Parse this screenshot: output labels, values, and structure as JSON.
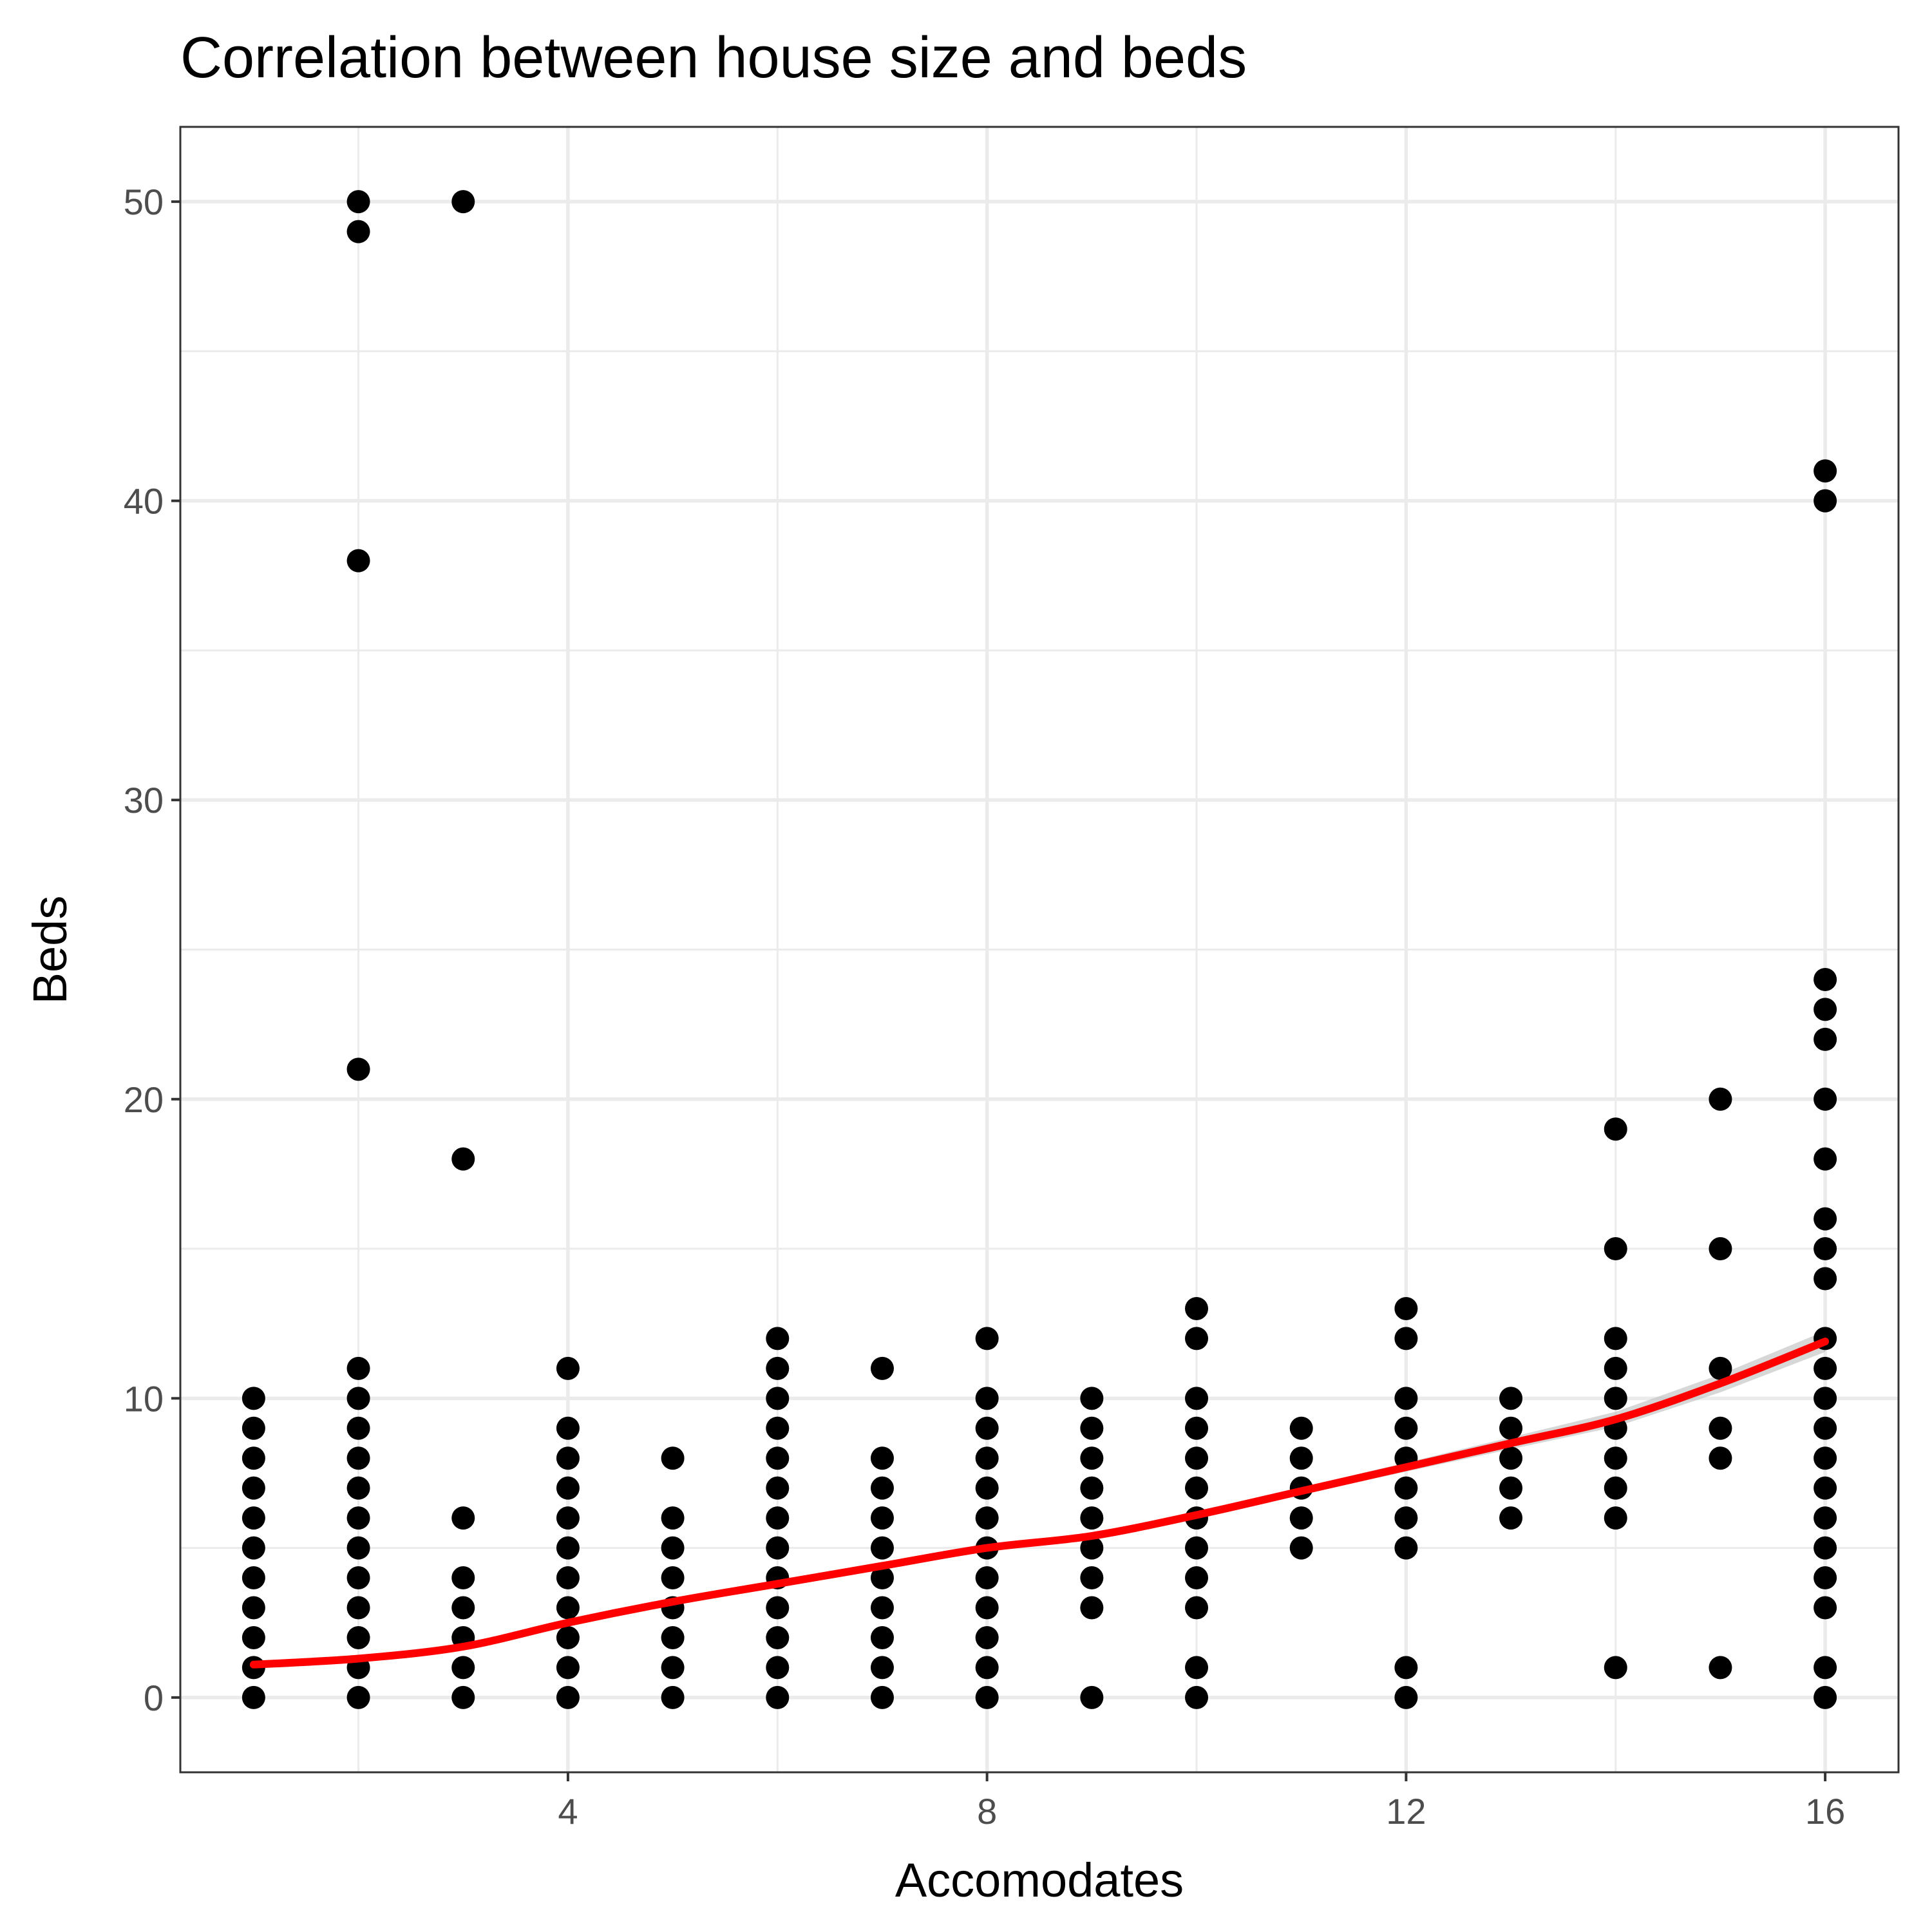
{
  "chart_data": {
    "type": "scatter",
    "title": "Correlation between house size and beds",
    "xlabel": "Accomodates",
    "ylabel": "Beds",
    "xlim": [
      0.3,
      16.7
    ],
    "ylim": [
      -2.5,
      52.5
    ],
    "x_ticks": [
      4,
      8,
      12,
      16
    ],
    "y_ticks": [
      0,
      10,
      20,
      30,
      40,
      50
    ],
    "grid": true,
    "legend": "none",
    "colors": {
      "points": "#000000",
      "smooth": "#ff0000",
      "band": "#bdbdbd"
    },
    "series": [
      {
        "points": [
          [
            1,
            0
          ],
          [
            1,
            1
          ],
          [
            1,
            2
          ],
          [
            1,
            3
          ],
          [
            1,
            4
          ],
          [
            1,
            5
          ],
          [
            1,
            6
          ],
          [
            1,
            7
          ],
          [
            1,
            8
          ],
          [
            1,
            9
          ],
          [
            1,
            10
          ],
          [
            2,
            0
          ],
          [
            2,
            1
          ],
          [
            2,
            2
          ],
          [
            2,
            3
          ],
          [
            2,
            4
          ],
          [
            2,
            5
          ],
          [
            2,
            6
          ],
          [
            2,
            7
          ],
          [
            2,
            8
          ],
          [
            2,
            9
          ],
          [
            2,
            10
          ],
          [
            2,
            11
          ],
          [
            2,
            21
          ],
          [
            2,
            38
          ],
          [
            2,
            49
          ],
          [
            2,
            50
          ],
          [
            3,
            0
          ],
          [
            3,
            1
          ],
          [
            3,
            2
          ],
          [
            3,
            3
          ],
          [
            3,
            4
          ],
          [
            3,
            6
          ],
          [
            3,
            18
          ],
          [
            3,
            50
          ],
          [
            4,
            0
          ],
          [
            4,
            1
          ],
          [
            4,
            2
          ],
          [
            4,
            3
          ],
          [
            4,
            4
          ],
          [
            4,
            5
          ],
          [
            4,
            6
          ],
          [
            4,
            7
          ],
          [
            4,
            8
          ],
          [
            4,
            9
          ],
          [
            4,
            11
          ],
          [
            5,
            0
          ],
          [
            5,
            1
          ],
          [
            5,
            2
          ],
          [
            5,
            3
          ],
          [
            5,
            4
          ],
          [
            5,
            5
          ],
          [
            5,
            6
          ],
          [
            5,
            8
          ],
          [
            6,
            0
          ],
          [
            6,
            1
          ],
          [
            6,
            2
          ],
          [
            6,
            3
          ],
          [
            6,
            4
          ],
          [
            6,
            5
          ],
          [
            6,
            6
          ],
          [
            6,
            7
          ],
          [
            6,
            8
          ],
          [
            6,
            9
          ],
          [
            6,
            10
          ],
          [
            6,
            11
          ],
          [
            6,
            12
          ],
          [
            7,
            0
          ],
          [
            7,
            1
          ],
          [
            7,
            2
          ],
          [
            7,
            3
          ],
          [
            7,
            4
          ],
          [
            7,
            5
          ],
          [
            7,
            6
          ],
          [
            7,
            7
          ],
          [
            7,
            8
          ],
          [
            7,
            11
          ],
          [
            8,
            0
          ],
          [
            8,
            1
          ],
          [
            8,
            2
          ],
          [
            8,
            3
          ],
          [
            8,
            4
          ],
          [
            8,
            5
          ],
          [
            8,
            6
          ],
          [
            8,
            7
          ],
          [
            8,
            8
          ],
          [
            8,
            9
          ],
          [
            8,
            10
          ],
          [
            8,
            12
          ],
          [
            9,
            0
          ],
          [
            9,
            3
          ],
          [
            9,
            4
          ],
          [
            9,
            5
          ],
          [
            9,
            6
          ],
          [
            9,
            7
          ],
          [
            9,
            8
          ],
          [
            9,
            9
          ],
          [
            9,
            10
          ],
          [
            10,
            0
          ],
          [
            10,
            1
          ],
          [
            10,
            3
          ],
          [
            10,
            4
          ],
          [
            10,
            5
          ],
          [
            10,
            6
          ],
          [
            10,
            7
          ],
          [
            10,
            8
          ],
          [
            10,
            9
          ],
          [
            10,
            10
          ],
          [
            10,
            12
          ],
          [
            10,
            13
          ],
          [
            11,
            5
          ],
          [
            11,
            6
          ],
          [
            11,
            7
          ],
          [
            11,
            8
          ],
          [
            11,
            9
          ],
          [
            12,
            0
          ],
          [
            12,
            1
          ],
          [
            12,
            5
          ],
          [
            12,
            6
          ],
          [
            12,
            7
          ],
          [
            12,
            8
          ],
          [
            12,
            9
          ],
          [
            12,
            10
          ],
          [
            12,
            12
          ],
          [
            12,
            13
          ],
          [
            13,
            6
          ],
          [
            13,
            7
          ],
          [
            13,
            8
          ],
          [
            13,
            9
          ],
          [
            13,
            10
          ],
          [
            14,
            1
          ],
          [
            14,
            6
          ],
          [
            14,
            7
          ],
          [
            14,
            8
          ],
          [
            14,
            9
          ],
          [
            14,
            10
          ],
          [
            14,
            11
          ],
          [
            14,
            12
          ],
          [
            14,
            15
          ],
          [
            14,
            19
          ],
          [
            15,
            1
          ],
          [
            15,
            8
          ],
          [
            15,
            9
          ],
          [
            15,
            11
          ],
          [
            15,
            15
          ],
          [
            15,
            20
          ],
          [
            16,
            0
          ],
          [
            16,
            1
          ],
          [
            16,
            3
          ],
          [
            16,
            4
          ],
          [
            16,
            5
          ],
          [
            16,
            6
          ],
          [
            16,
            7
          ],
          [
            16,
            8
          ],
          [
            16,
            9
          ],
          [
            16,
            10
          ],
          [
            16,
            11
          ],
          [
            16,
            12
          ],
          [
            16,
            14
          ],
          [
            16,
            15
          ],
          [
            16,
            16
          ],
          [
            16,
            18
          ],
          [
            16,
            20
          ],
          [
            16,
            22
          ],
          [
            16,
            23
          ],
          [
            16,
            24
          ],
          [
            16,
            40
          ],
          [
            16,
            41
          ]
        ]
      }
    ],
    "smooth": {
      "x": [
        1,
        2,
        3,
        4,
        5,
        6,
        7,
        8,
        9,
        10,
        11,
        12,
        13,
        14,
        15,
        16
      ],
      "y": [
        1.1,
        1.3,
        1.7,
        2.5,
        3.2,
        3.8,
        4.4,
        5.0,
        5.4,
        6.1,
        6.9,
        7.7,
        8.5,
        9.3,
        10.5,
        11.9
      ],
      "band_halfwidth": [
        0.12,
        0.1,
        0.1,
        0.1,
        0.1,
        0.1,
        0.1,
        0.1,
        0.1,
        0.1,
        0.12,
        0.15,
        0.2,
        0.25,
        0.3,
        0.35
      ]
    }
  }
}
